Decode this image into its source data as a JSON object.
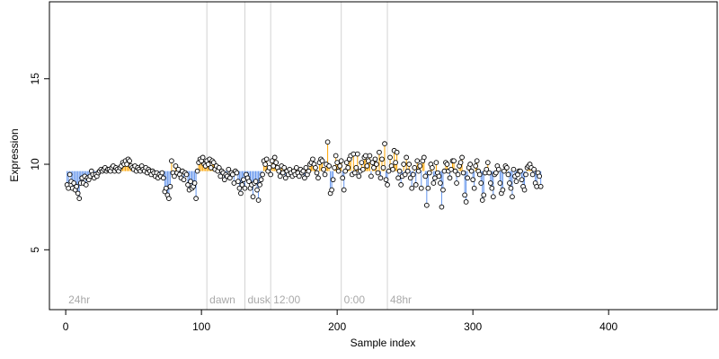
{
  "chart_data": {
    "type": "scatter",
    "xlabel": "Sample index",
    "ylabel": "Expression",
    "xlim": [
      -12,
      480
    ],
    "ylim": [
      1.5,
      19.5
    ],
    "x_ticks": [
      0,
      100,
      200,
      300,
      400
    ],
    "y_ticks": [
      5,
      10,
      15
    ],
    "grid": false,
    "baseline": 9.6,
    "sections": [
      {
        "label": "24hr",
        "x": 0
      },
      {
        "label": "dawn",
        "x": 104
      },
      {
        "label": "dusk",
        "x": 132
      },
      {
        "label": "12:00",
        "x": 151
      },
      {
        "label": "0:00",
        "x": 203
      },
      {
        "label": "48hr",
        "x": 237
      }
    ],
    "colors": {
      "above": "#ffa500",
      "below": "#6495ed",
      "divider": "#d3d3d3",
      "label": "#a9a9a9",
      "point_fill": "#ffffff",
      "point_stroke": "#000000"
    },
    "values": [
      8.8,
      8.6,
      9.4,
      9.0,
      8.6,
      8.9,
      8.5,
      8.7,
      8.3,
      8.0,
      8.9,
      9.2,
      8.9,
      9.3,
      8.8,
      9.2,
      9.1,
      9.3,
      9.6,
      9.4,
      9.2,
      9.4,
      9.3,
      9.5,
      9.6,
      9.7,
      9.6,
      9.7,
      9.8,
      9.6,
      9.7,
      9.7,
      9.6,
      9.8,
      9.9,
      9.6,
      9.8,
      9.7,
      9.6,
      9.8,
      9.9,
      10.1,
      10.0,
      10.2,
      10.0,
      10.3,
      10.2,
      9.9,
      9.8,
      9.7,
      9.9,
      9.6,
      9.8,
      9.7,
      9.6,
      9.9,
      9.7,
      9.6,
      9.8,
      9.5,
      9.7,
      9.6,
      9.4,
      9.6,
      9.5,
      9.3,
      9.5,
      9.2,
      9.4,
      9.3,
      9.5,
      9.2,
      8.4,
      8.6,
      8.2,
      8.0,
      8.7,
      10.2,
      9.5,
      9.3,
      9.9,
      9.5,
      9.7,
      9.4,
      9.2,
      9.6,
      9.1,
      9.5,
      9.4,
      8.8,
      8.5,
      9.0,
      8.6,
      8.7,
      8.9,
      8.0,
      9.6,
      10.1,
      10.3,
      10.2,
      10.4,
      10.0,
      9.9,
      10.2,
      10.0,
      10.3,
      9.8,
      10.2,
      10.1,
      9.7,
      9.9,
      9.6,
      9.8,
      9.3,
      9.6,
      9.5,
      9.1,
      9.4,
      9.3,
      9.7,
      9.2,
      9.5,
      9.4,
      8.9,
      9.6,
      9.5,
      9.0,
      8.6,
      8.3,
      8.8,
      9.1,
      8.6,
      9.4,
      9.2,
      9.0,
      8.6,
      8.8,
      8.1,
      8.9,
      9.0,
      8.5,
      7.9,
      8.8,
      9.1,
      9.4,
      10.2,
      10.0,
      10.3,
      9.6,
      9.8,
      9.4,
      10.2,
      9.9,
      10.4,
      10.1,
      9.8,
      9.6,
      9.3,
      9.9,
      9.5,
      9.8,
      9.2,
      9.6,
      9.4,
      9.7,
      9.5,
      9.3,
      9.6,
      9.4,
      9.8,
      9.5,
      9.3,
      9.7,
      9.5,
      9.6,
      9.2,
      9.8,
      9.4,
      9.6,
      10.0,
      10.1,
      10.3,
      10.0,
      9.8,
      9.5,
      9.2,
      10.1,
      10.3,
      10.2,
      9.7,
      9.4,
      10.0,
      11.3,
      9.9,
      8.3,
      8.5,
      9.1,
      9.8,
      10.5,
      10.1,
      9.6,
      9.9,
      10.2,
      9.2,
      8.5,
      9.6,
      10.1,
      9.8,
      10.3,
      10.5,
      9.4,
      10.6,
      9.5,
      9.8,
      10.6,
      9.3,
      9.6,
      10.1,
      9.7,
      10.4,
      10.5,
      9.9,
      10.2,
      10.5,
      9.3,
      10.1,
      9.8,
      10.3,
      10.0,
      9.5,
      10.7,
      9.2,
      10.3,
      9.8,
      11.2,
      9.1,
      8.8,
      9.6,
      10.4,
      9.9,
      9.7,
      10.8,
      10.1,
      10.7,
      9.2,
      9.6,
      8.8,
      9.3,
      10.0,
      9.4,
      10.4,
      9.6,
      10.0,
      9.2,
      8.6,
      9.4,
      9.8,
      8.8,
      10.2,
      9.6,
      9.9,
      8.6,
      10.2,
      10.4,
      9.3,
      7.6,
      8.6,
      9.5,
      10.0,
      9.8,
      8.9,
      9.2,
      10.1,
      9.5,
      9.3,
      8.9,
      7.5,
      8.5,
      9.6,
      10.1,
      10.0,
      9.6,
      9.2,
      9.7,
      10.2,
      10.2,
      9.6,
      8.9,
      9.4,
      9.9,
      10.1,
      10.4,
      9.5,
      8.2,
      7.8,
      9.2,
      9.8,
      10.0,
      9.6,
      9.1,
      8.6,
      9.9,
      10.2,
      9.6,
      9.4,
      8.9,
      7.9,
      8.2,
      9.5,
      9.7,
      10.1,
      9.5,
      8.9,
      8.6,
      8.1,
      9.4,
      9.5,
      9.9,
      9.7,
      8.9,
      8.3,
      8.5,
      9.6,
      9.9,
      9.8,
      9.4,
      8.9,
      8.6,
      8.1,
      9.7,
      9.3,
      9.0,
      9.4,
      9.6,
      9.6,
      9.1,
      8.7,
      8.5,
      9.4,
      9.8,
      9.9,
      10.0,
      9.8,
      9.4,
      9.7,
      8.9,
      8.7,
      9.5,
      9.3,
      8.7
    ]
  }
}
